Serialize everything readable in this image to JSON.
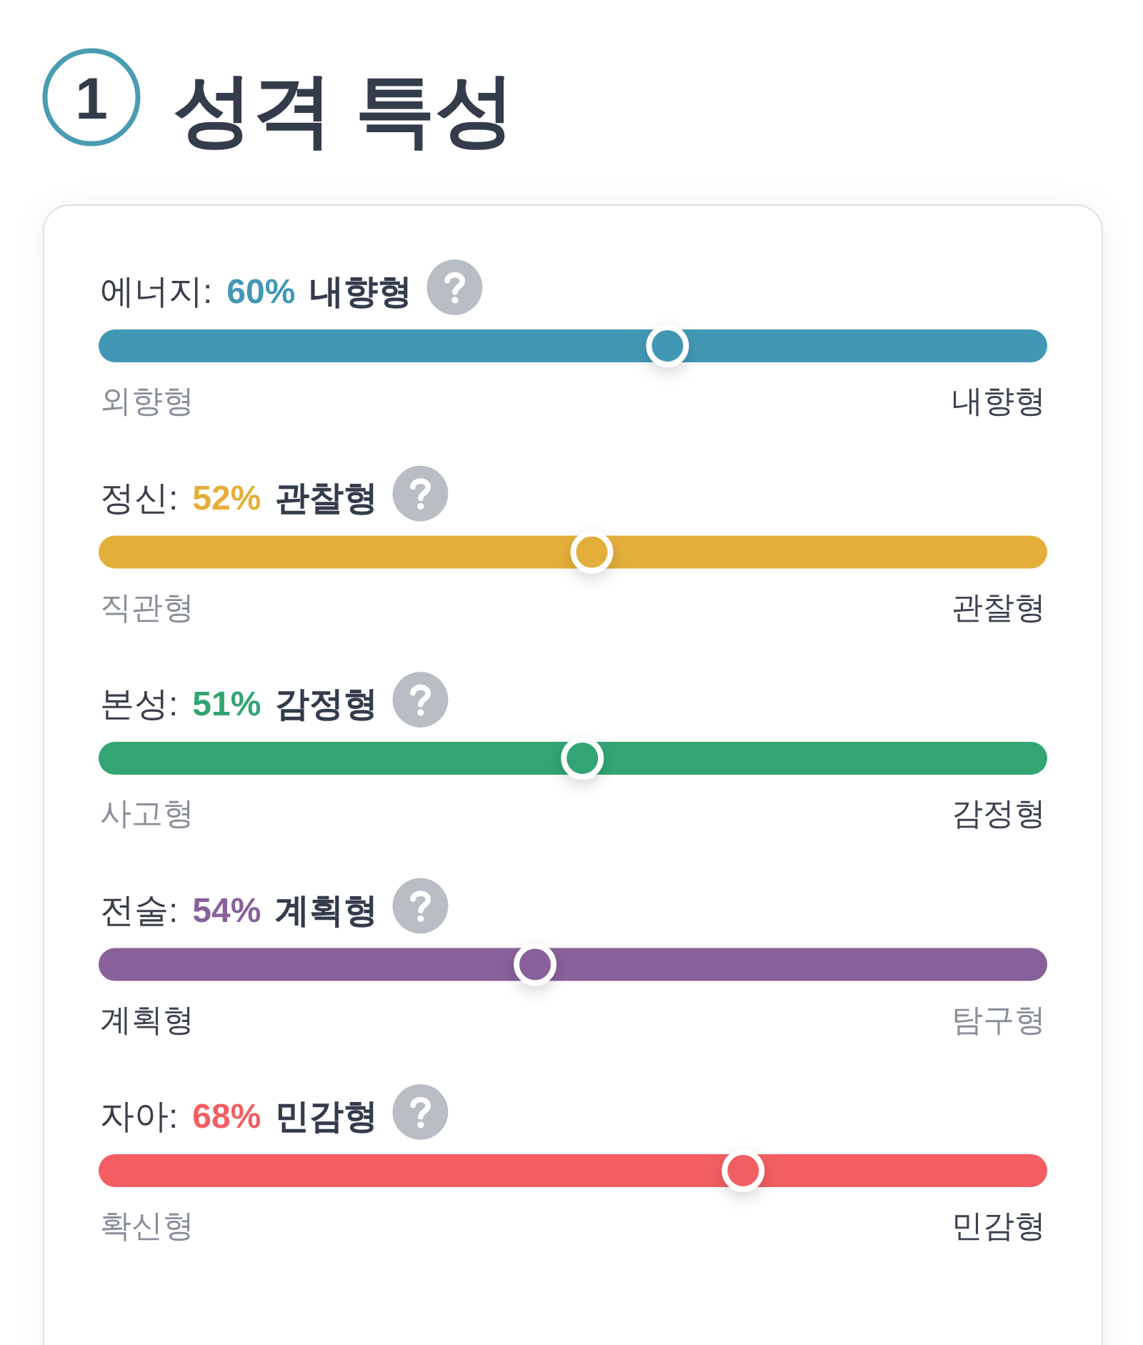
{
  "chart_data": [
    {
      "type": "other",
      "title": "성격 특성",
      "annotations": [
        "1"
      ]
    },
    {
      "type": "other",
      "title": "에너지:",
      "categories": [
        "외향형",
        "내향형"
      ],
      "values": [
        null,
        60
      ],
      "value_labels": [
        null,
        "60%"
      ],
      "color": "#4298b4"
    },
    {
      "type": "other",
      "title": "정신:",
      "categories": [
        "직관형",
        "관찰형"
      ],
      "values": [
        null,
        52
      ],
      "value_labels": [
        null,
        "52%"
      ],
      "color": "#e4ae3a"
    },
    {
      "type": "other",
      "title": "본성:",
      "categories": [
        "사고형",
        "감정형"
      ],
      "values": [
        null,
        51
      ],
      "value_labels": [
        null,
        "51%"
      ],
      "color": "#33a474"
    },
    {
      "type": "other",
      "title": "전술:",
      "categories": [
        "계획형",
        "탐구형"
      ],
      "values": [
        54,
        null
      ],
      "value_labels": [
        "54%",
        null
      ],
      "color": "#88619a"
    },
    {
      "type": "other",
      "title": "자아:",
      "categories": [
        "확신형",
        "민감형"
      ],
      "values": [
        null,
        68
      ],
      "value_labels": [
        null,
        "68%"
      ],
      "color": "#f25e62"
    }
  ]
}
